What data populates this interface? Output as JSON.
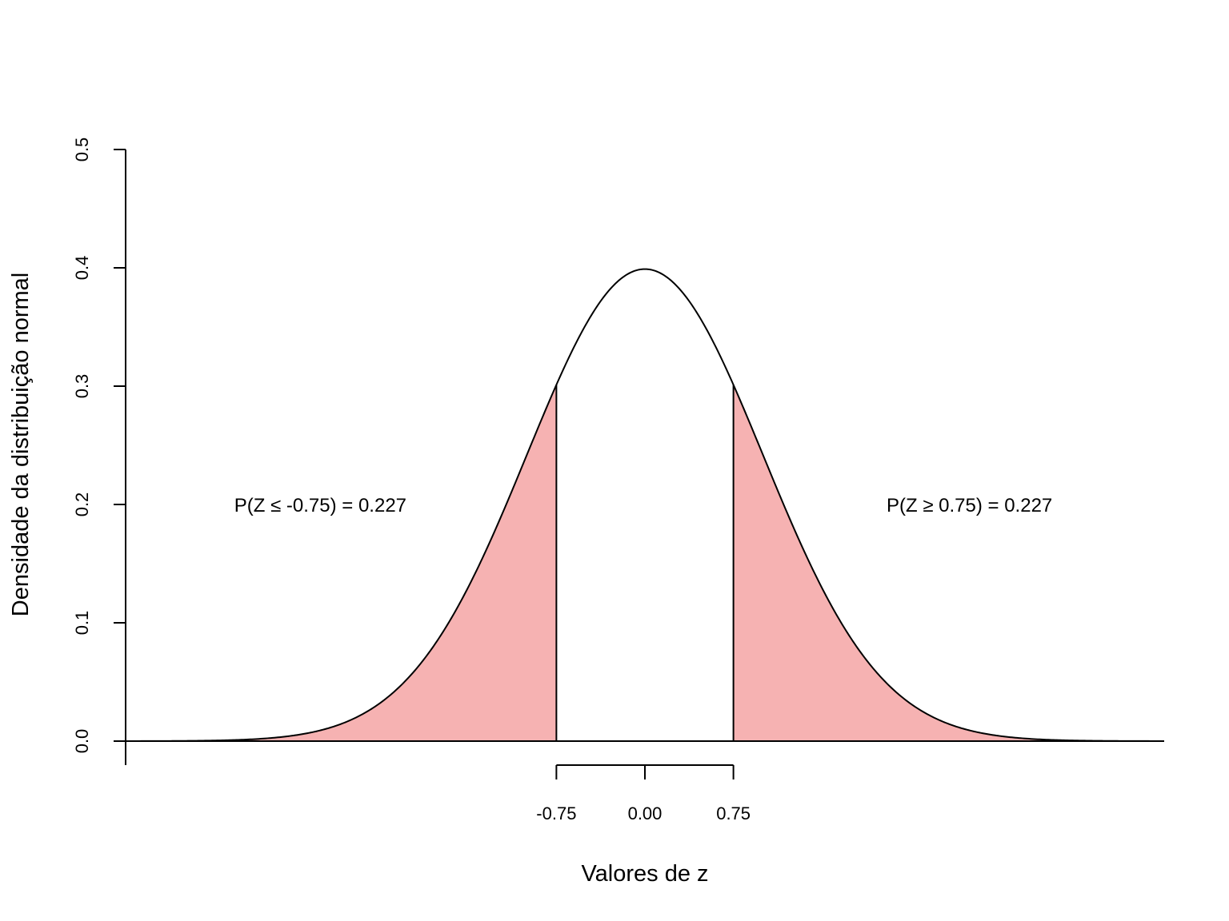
{
  "chart_data": {
    "type": "area",
    "distribution": "standard normal density",
    "xlabel": "Valores de z",
    "ylabel": "Densidade da distribuição normal",
    "xlim": [
      -4.4,
      4.4
    ],
    "ylim": [
      0,
      0.5
    ],
    "y_ticks": [
      0.0,
      0.1,
      0.2,
      0.3,
      0.4,
      0.5
    ],
    "y_tick_labels": [
      "0.0",
      "0.1",
      "0.2",
      "0.3",
      "0.4",
      "0.5"
    ],
    "x_ticks": [
      -0.75,
      0.0,
      0.75
    ],
    "x_tick_labels": [
      "-0.75",
      "0.00",
      "0.75"
    ],
    "mean": 0,
    "sd": 1,
    "shaded_regions": [
      {
        "from": -4.4,
        "to": -0.75
      },
      {
        "from": 0.75,
        "to": 4.4
      }
    ],
    "shade_color": "#F6B2B2",
    "curve_color": "#000000",
    "annotations": [
      {
        "x": -2.75,
        "y": 0.2,
        "text": "P(Z ≤ -0.75) = 0.227"
      },
      {
        "x": 2.75,
        "y": 0.2,
        "text": "P(Z ≥ 0.75) = 0.227"
      }
    ],
    "grid": false,
    "legend": "none"
  }
}
